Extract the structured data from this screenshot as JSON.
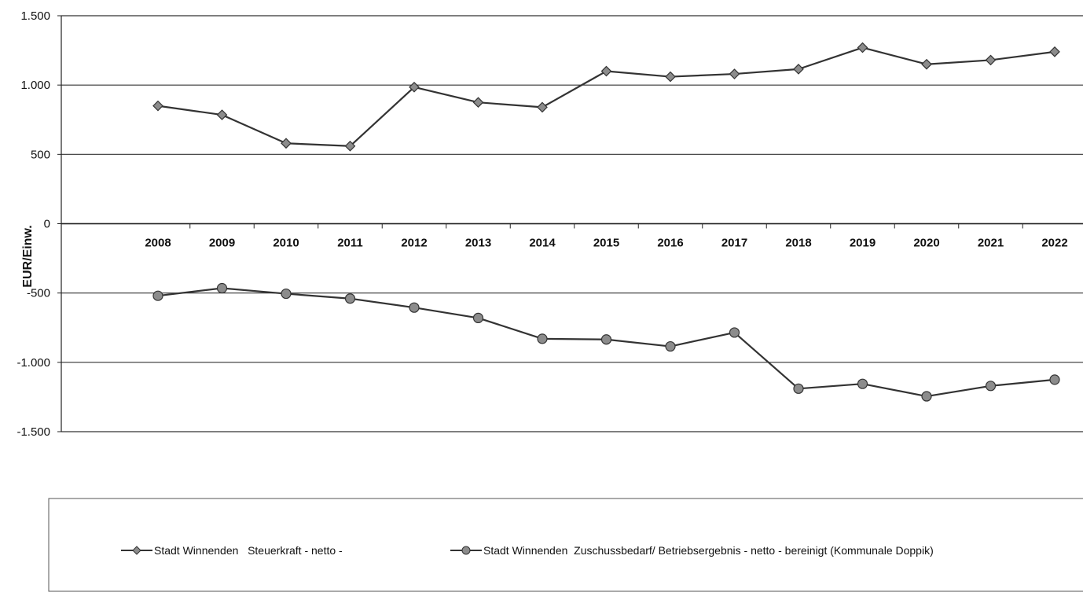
{
  "chart_data": {
    "type": "line",
    "title": "",
    "xlabel": "",
    "ylabel": "EUR/Einw.",
    "categories": [
      "2008",
      "2009",
      "2010",
      "2011",
      "2012",
      "2013",
      "2014",
      "2015",
      "2016",
      "2017",
      "2018",
      "2019",
      "2020",
      "2021",
      "2022"
    ],
    "ylim": [
      -1500,
      1500
    ],
    "yticks": [
      1500,
      1000,
      500,
      0,
      -500,
      -1000,
      -1500
    ],
    "ytick_labels": [
      "1.500",
      "1.000",
      "500",
      "0",
      "-500",
      "-1.000",
      "-1.500"
    ],
    "grid": true,
    "legend_position": "bottom",
    "series": [
      {
        "name": "Stadt Winnenden   Steuerkraft - netto -",
        "marker": "diamond",
        "values": [
          850,
          785,
          580,
          560,
          985,
          875,
          840,
          1100,
          1060,
          1080,
          1115,
          1270,
          1150,
          1180,
          1240
        ]
      },
      {
        "name": "Stadt Winnenden  Zuschussbedarf/ Betriebsergebnis - netto - bereinigt (Kommunale Doppik)",
        "marker": "circle",
        "values": [
          -520,
          -465,
          -505,
          -540,
          -605,
          -680,
          -830,
          -835,
          -885,
          -785,
          -1190,
          -1155,
          -1245,
          -1170,
          -1125
        ]
      }
    ],
    "colors": {
      "line": "#333333",
      "marker_fill": "#8c8c8c",
      "grid": "#333333",
      "axis": "#222222"
    }
  }
}
